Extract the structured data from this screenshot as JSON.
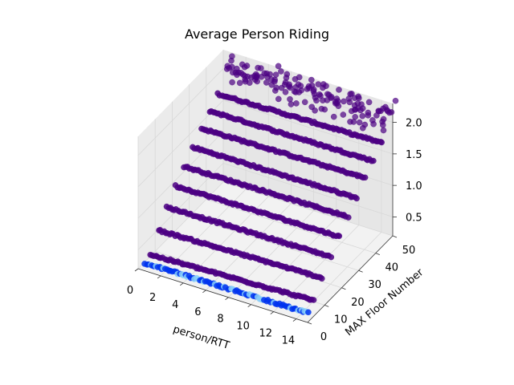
{
  "chart_data": {
    "type": "scatter",
    "projection": "3d",
    "title": "Average Person Riding",
    "xlabel": "person/RTT",
    "ylabel": "MAX Floor Number",
    "zlabel": "",
    "xlim": [
      0,
      15
    ],
    "ylim": [
      0,
      50
    ],
    "zlim": [
      0.2,
      2.3
    ],
    "xticks": [
      "0",
      "2",
      "4",
      "6",
      "8",
      "10",
      "12",
      "14"
    ],
    "yticks": [
      "0",
      "10",
      "20",
      "30",
      "40",
      "50"
    ],
    "zticks": [
      "0.5",
      "1.0",
      "1.5",
      "2.0"
    ],
    "grid": true,
    "colors": {
      "main": "#4b0082",
      "blue": "#0033ee",
      "lightblue": "#87cefa"
    },
    "series": [
      {
        "max_floor": 2,
        "z_start": 0.25,
        "z_end": 0.28,
        "color": "#0033ee"
      },
      {
        "max_floor": 5,
        "z_start": 0.3,
        "z_end": 0.4,
        "color": "#4b0082"
      },
      {
        "max_floor": 10,
        "z_start": 0.55,
        "z_end": 0.62,
        "color": "#4b0082"
      },
      {
        "max_floor": 15,
        "z_start": 0.78,
        "z_end": 0.82,
        "color": "#4b0082"
      },
      {
        "max_floor": 20,
        "z_start": 0.98,
        "z_end": 1.0,
        "color": "#4b0082"
      },
      {
        "max_floor": 25,
        "z_start": 1.15,
        "z_end": 1.18,
        "color": "#4b0082"
      },
      {
        "max_floor": 30,
        "z_start": 1.32,
        "z_end": 1.34,
        "color": "#4b0082"
      },
      {
        "max_floor": 35,
        "z_start": 1.48,
        "z_end": 1.52,
        "color": "#4b0082"
      },
      {
        "max_floor": 40,
        "z_start": 1.62,
        "z_end": 1.65,
        "color": "#4b0082"
      },
      {
        "max_floor": 45,
        "z_start": 1.75,
        "z_end": 1.8,
        "color": "#4b0082"
      },
      {
        "max_floor": 50,
        "z_start": 2.05,
        "z_end": 2.05,
        "color": "#4b0082",
        "scatter": 0.15
      }
    ]
  }
}
